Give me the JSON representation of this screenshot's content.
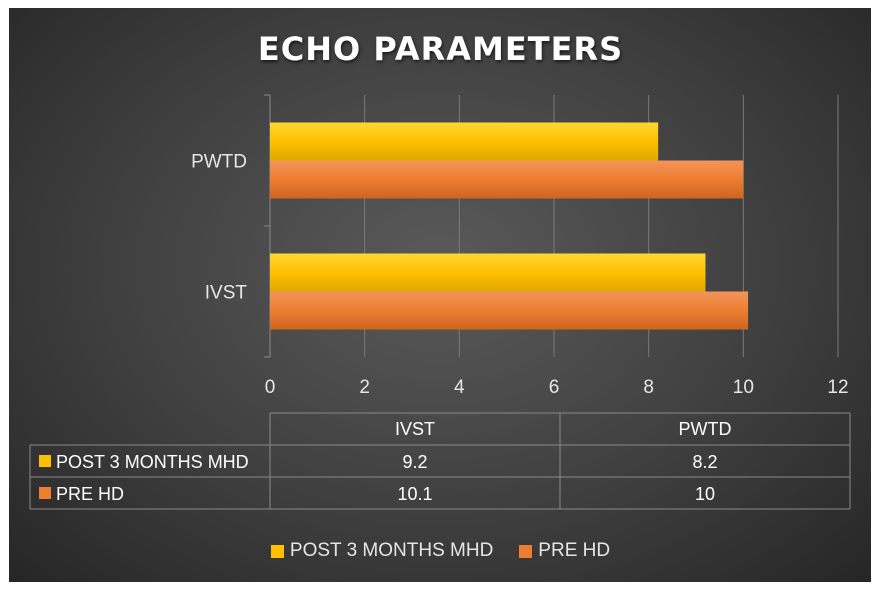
{
  "chart_data": {
    "type": "bar",
    "orientation": "horizontal",
    "title": "ECHO PARAMETERS",
    "categories": [
      "IVST",
      "PWTD"
    ],
    "series": [
      {
        "name": "POST 3 MONTHS MHD",
        "values": [
          9.2,
          8.2
        ],
        "color": "#FFC000"
      },
      {
        "name": "PRE HD",
        "values": [
          10.1,
          10
        ],
        "color": "#ED7D31"
      }
    ],
    "xlim": [
      0,
      12
    ],
    "xticks": [
      0,
      2,
      4,
      6,
      8,
      10,
      12
    ],
    "grid": true,
    "legend": "bottom",
    "data_table": true
  }
}
